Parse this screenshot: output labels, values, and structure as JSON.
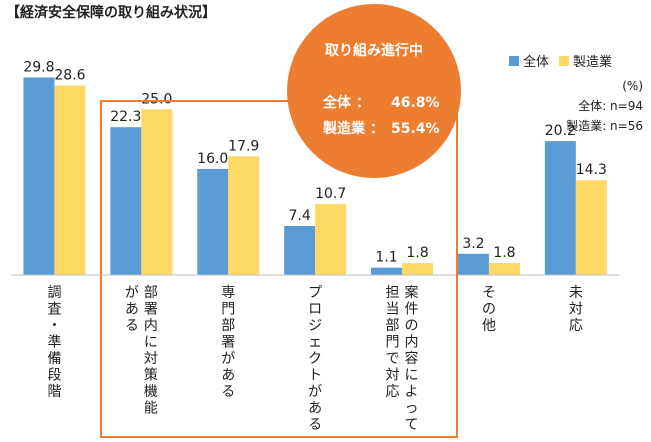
{
  "title": "【経済安全保障の取り組み状況】",
  "colors": {
    "all": "#5b9bd5",
    "manufacturing": "#ffd966",
    "highlight": "#ed7d31"
  },
  "legend": {
    "all": "全体",
    "manufacturing": "製造業"
  },
  "notes": {
    "unit": "(%)",
    "n_all": "全体: n=94",
    "n_mfg": "製造業: n=56"
  },
  "callout": {
    "title": "取り組み進行中",
    "all_label": "全体 ：",
    "all_value": "46.8%",
    "mfg_label": "製造業 ：",
    "mfg_value": "55.4%"
  },
  "chart_data": {
    "type": "bar",
    "title": "",
    "categories": [
      "調査・準備段階",
      "部署内に対策機能がある",
      "専門部署がある",
      "プロジェクトがある",
      "案件の内容によって担当部門で対応",
      "その他",
      "未対応"
    ],
    "category_labels": [
      [
        "調査・準備段階"
      ],
      [
        "部署内に対策機能",
        "がある"
      ],
      [
        "専門部署がある"
      ],
      [
        "プロジェクトがある"
      ],
      [
        "案件の内容によって",
        "担当部門で対応"
      ],
      [
        "その他"
      ],
      [
        "未対応"
      ]
    ],
    "series": [
      {
        "name": "全体",
        "values": [
          29.8,
          22.3,
          16.0,
          7.4,
          1.1,
          3.2,
          20.2
        ]
      },
      {
        "name": "製造業",
        "values": [
          28.6,
          25.0,
          17.9,
          10.7,
          1.8,
          1.8,
          14.3
        ]
      }
    ],
    "ylim": [
      0,
      35
    ],
    "grid": false,
    "legend_position": "top-right",
    "value_labels": [
      [
        "29.8",
        "22.3",
        "16.0",
        "7.4",
        "1.1",
        "3.2",
        "20.2"
      ],
      [
        "28.6",
        "25.0",
        "17.9",
        "10.7",
        "1.8",
        "1.8",
        "14.3"
      ]
    ]
  }
}
